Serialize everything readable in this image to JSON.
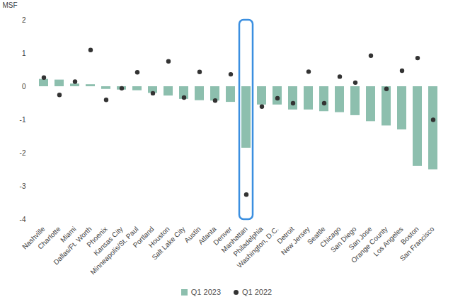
{
  "chart_data": {
    "type": "bar",
    "ylabel": "MSF",
    "categories": [
      "Nashville",
      "Charlotte",
      "Miami",
      "Dallas/Ft. Worth",
      "Phoenix",
      "Kansas City",
      "Minneapolis/St. Paul",
      "Portland",
      "Houston",
      "Salt Lake City",
      "Austin",
      "Atlanta",
      "Denver",
      "Manhattan",
      "Philadelphia",
      "Washington, D.C.",
      "Detroit",
      "New Jersey",
      "Seattle",
      "Chicago",
      "San Diego",
      "San Jose",
      "Orange County",
      "Los Angeles",
      "Boston",
      "San Francisco"
    ],
    "series": [
      {
        "name": "Q1 2023",
        "type": "bar",
        "color": "#8dbfae",
        "values": [
          0.22,
          0.2,
          0.08,
          0.06,
          -0.08,
          -0.1,
          -0.12,
          -0.2,
          -0.28,
          -0.38,
          -0.42,
          -0.43,
          -0.47,
          -1.85,
          -0.55,
          -0.55,
          -0.7,
          -0.7,
          -0.75,
          -0.78,
          -0.87,
          -1.05,
          -1.18,
          -1.3,
          -2.4,
          -2.5
        ]
      },
      {
        "name": "Q1 2022",
        "type": "scatter",
        "marker": "circle",
        "color": "#333333",
        "values": [
          0.27,
          -0.25,
          0.15,
          1.1,
          -0.4,
          -0.05,
          0.43,
          -0.2,
          0.76,
          -0.33,
          0.44,
          -0.42,
          0.37,
          -3.25,
          -0.6,
          -0.35,
          -0.5,
          0.45,
          -0.5,
          0.3,
          0.12,
          0.93,
          -0.07,
          0.48,
          0.86,
          -1.0
        ]
      }
    ],
    "ylim": [
      -4,
      2
    ],
    "yticks": [
      -4,
      -3,
      -2,
      -1,
      0,
      1,
      2
    ],
    "legend": "bottom"
  }
}
